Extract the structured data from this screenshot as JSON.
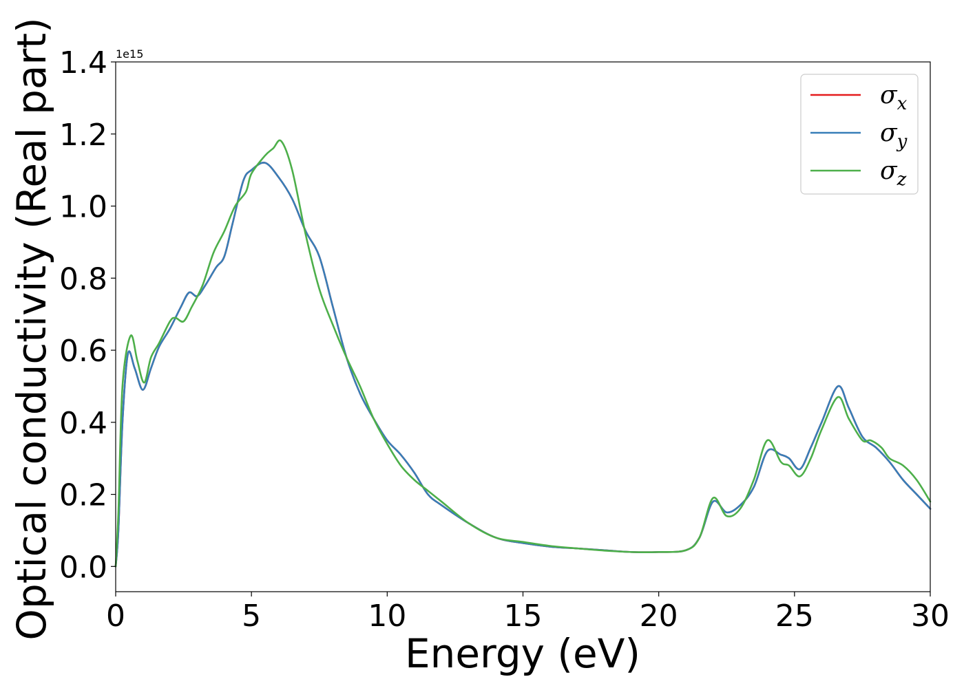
{
  "chart_data": {
    "type": "line",
    "xlabel": "Energy (eV)",
    "ylabel": "Optical conductivity (Real part)",
    "y_offset_text": "1e15",
    "xlim": [
      0,
      30
    ],
    "ylim": [
      -0.07,
      1.4
    ],
    "x_ticks": [
      0,
      5,
      10,
      15,
      20,
      25,
      30
    ],
    "x_tick_labels": [
      "0",
      "5",
      "10",
      "15",
      "20",
      "25",
      "30"
    ],
    "y_ticks": [
      0.0,
      0.2,
      0.4,
      0.6,
      0.8,
      1.0,
      1.2,
      1.4
    ],
    "y_tick_labels": [
      "0.0",
      "0.2",
      "0.4",
      "0.6",
      "0.8",
      "1.0",
      "1.2",
      "1.4"
    ],
    "grid": false,
    "legend_position": "top-right",
    "series": [
      {
        "name": "σx",
        "symbol": "σ",
        "subscript": "x",
        "color": "#e41a1c",
        "x": [
          0,
          0.1,
          0.25,
          0.45,
          0.7,
          1.0,
          1.3,
          1.6,
          2.0,
          2.4,
          2.7,
          3.0,
          3.3,
          3.7,
          4.0,
          4.3,
          4.7,
          5.0,
          5.5,
          6.0,
          6.5,
          7.0,
          7.5,
          8.0,
          8.5,
          9.0,
          9.5,
          10.0,
          10.5,
          11.0,
          11.5,
          12.0,
          13.0,
          14.0,
          15.0,
          16.0,
          17.0,
          18.0,
          19.0,
          20.0,
          21.0,
          21.5,
          22.0,
          22.5,
          23.0,
          23.5,
          24.0,
          24.5,
          24.8,
          25.2,
          25.6,
          26.0,
          26.6,
          27.0,
          27.5,
          28.0,
          28.5,
          29.0,
          29.5,
          30.0
        ],
        "y": [
          0.0,
          0.1,
          0.4,
          0.59,
          0.55,
          0.49,
          0.55,
          0.61,
          0.66,
          0.72,
          0.76,
          0.75,
          0.78,
          0.83,
          0.86,
          0.95,
          1.07,
          1.1,
          1.12,
          1.08,
          1.02,
          0.93,
          0.86,
          0.72,
          0.58,
          0.48,
          0.41,
          0.35,
          0.31,
          0.26,
          0.2,
          0.17,
          0.12,
          0.08,
          0.065,
          0.055,
          0.05,
          0.045,
          0.04,
          0.04,
          0.045,
          0.08,
          0.18,
          0.15,
          0.17,
          0.22,
          0.32,
          0.31,
          0.3,
          0.27,
          0.33,
          0.4,
          0.5,
          0.44,
          0.36,
          0.33,
          0.29,
          0.24,
          0.2,
          0.16
        ]
      },
      {
        "name": "σy",
        "symbol": "σ",
        "subscript": "y",
        "color": "#377eb8",
        "x": [
          0,
          0.1,
          0.25,
          0.45,
          0.7,
          1.0,
          1.3,
          1.6,
          2.0,
          2.4,
          2.7,
          3.0,
          3.3,
          3.7,
          4.0,
          4.3,
          4.7,
          5.0,
          5.5,
          6.0,
          6.5,
          7.0,
          7.5,
          8.0,
          8.5,
          9.0,
          9.5,
          10.0,
          10.5,
          11.0,
          11.5,
          12.0,
          13.0,
          14.0,
          15.0,
          16.0,
          17.0,
          18.0,
          19.0,
          20.0,
          21.0,
          21.5,
          22.0,
          22.5,
          23.0,
          23.5,
          24.0,
          24.5,
          24.8,
          25.2,
          25.6,
          26.0,
          26.6,
          27.0,
          27.5,
          28.0,
          28.5,
          29.0,
          29.5,
          30.0
        ],
        "y": [
          0.0,
          0.1,
          0.4,
          0.59,
          0.55,
          0.49,
          0.55,
          0.61,
          0.66,
          0.72,
          0.76,
          0.75,
          0.78,
          0.83,
          0.86,
          0.95,
          1.07,
          1.1,
          1.12,
          1.08,
          1.02,
          0.93,
          0.86,
          0.72,
          0.58,
          0.48,
          0.41,
          0.35,
          0.31,
          0.26,
          0.2,
          0.17,
          0.12,
          0.08,
          0.065,
          0.055,
          0.05,
          0.045,
          0.04,
          0.04,
          0.045,
          0.08,
          0.18,
          0.15,
          0.17,
          0.22,
          0.32,
          0.31,
          0.3,
          0.27,
          0.33,
          0.4,
          0.5,
          0.44,
          0.36,
          0.33,
          0.29,
          0.24,
          0.2,
          0.16
        ]
      },
      {
        "name": "σz",
        "symbol": "σ",
        "subscript": "z",
        "color": "#4daf4a",
        "x": [
          0,
          0.1,
          0.25,
          0.55,
          0.8,
          1.05,
          1.3,
          1.6,
          2.0,
          2.2,
          2.5,
          2.8,
          3.2,
          3.6,
          4.0,
          4.4,
          4.8,
          5.0,
          5.5,
          5.8,
          6.1,
          6.5,
          7.0,
          7.5,
          8.0,
          8.5,
          9.0,
          9.5,
          10.0,
          10.5,
          11.0,
          11.5,
          12.0,
          13.0,
          14.0,
          15.0,
          16.0,
          17.0,
          18.0,
          19.0,
          20.0,
          21.0,
          21.5,
          22.0,
          22.5,
          23.0,
          23.5,
          24.0,
          24.5,
          24.8,
          25.2,
          25.6,
          26.0,
          26.6,
          27.0,
          27.5,
          27.8,
          28.2,
          28.5,
          29.0,
          29.5,
          30.0
        ],
        "y": [
          0.0,
          0.15,
          0.5,
          0.64,
          0.57,
          0.51,
          0.58,
          0.62,
          0.68,
          0.69,
          0.68,
          0.72,
          0.78,
          0.87,
          0.93,
          1.0,
          1.04,
          1.09,
          1.14,
          1.16,
          1.18,
          1.1,
          0.92,
          0.77,
          0.67,
          0.58,
          0.5,
          0.41,
          0.34,
          0.28,
          0.24,
          0.21,
          0.18,
          0.12,
          0.08,
          0.068,
          0.057,
          0.05,
          0.044,
          0.04,
          0.04,
          0.045,
          0.08,
          0.19,
          0.14,
          0.16,
          0.24,
          0.35,
          0.29,
          0.28,
          0.25,
          0.3,
          0.38,
          0.47,
          0.41,
          0.35,
          0.35,
          0.33,
          0.3,
          0.28,
          0.24,
          0.18
        ]
      }
    ]
  }
}
